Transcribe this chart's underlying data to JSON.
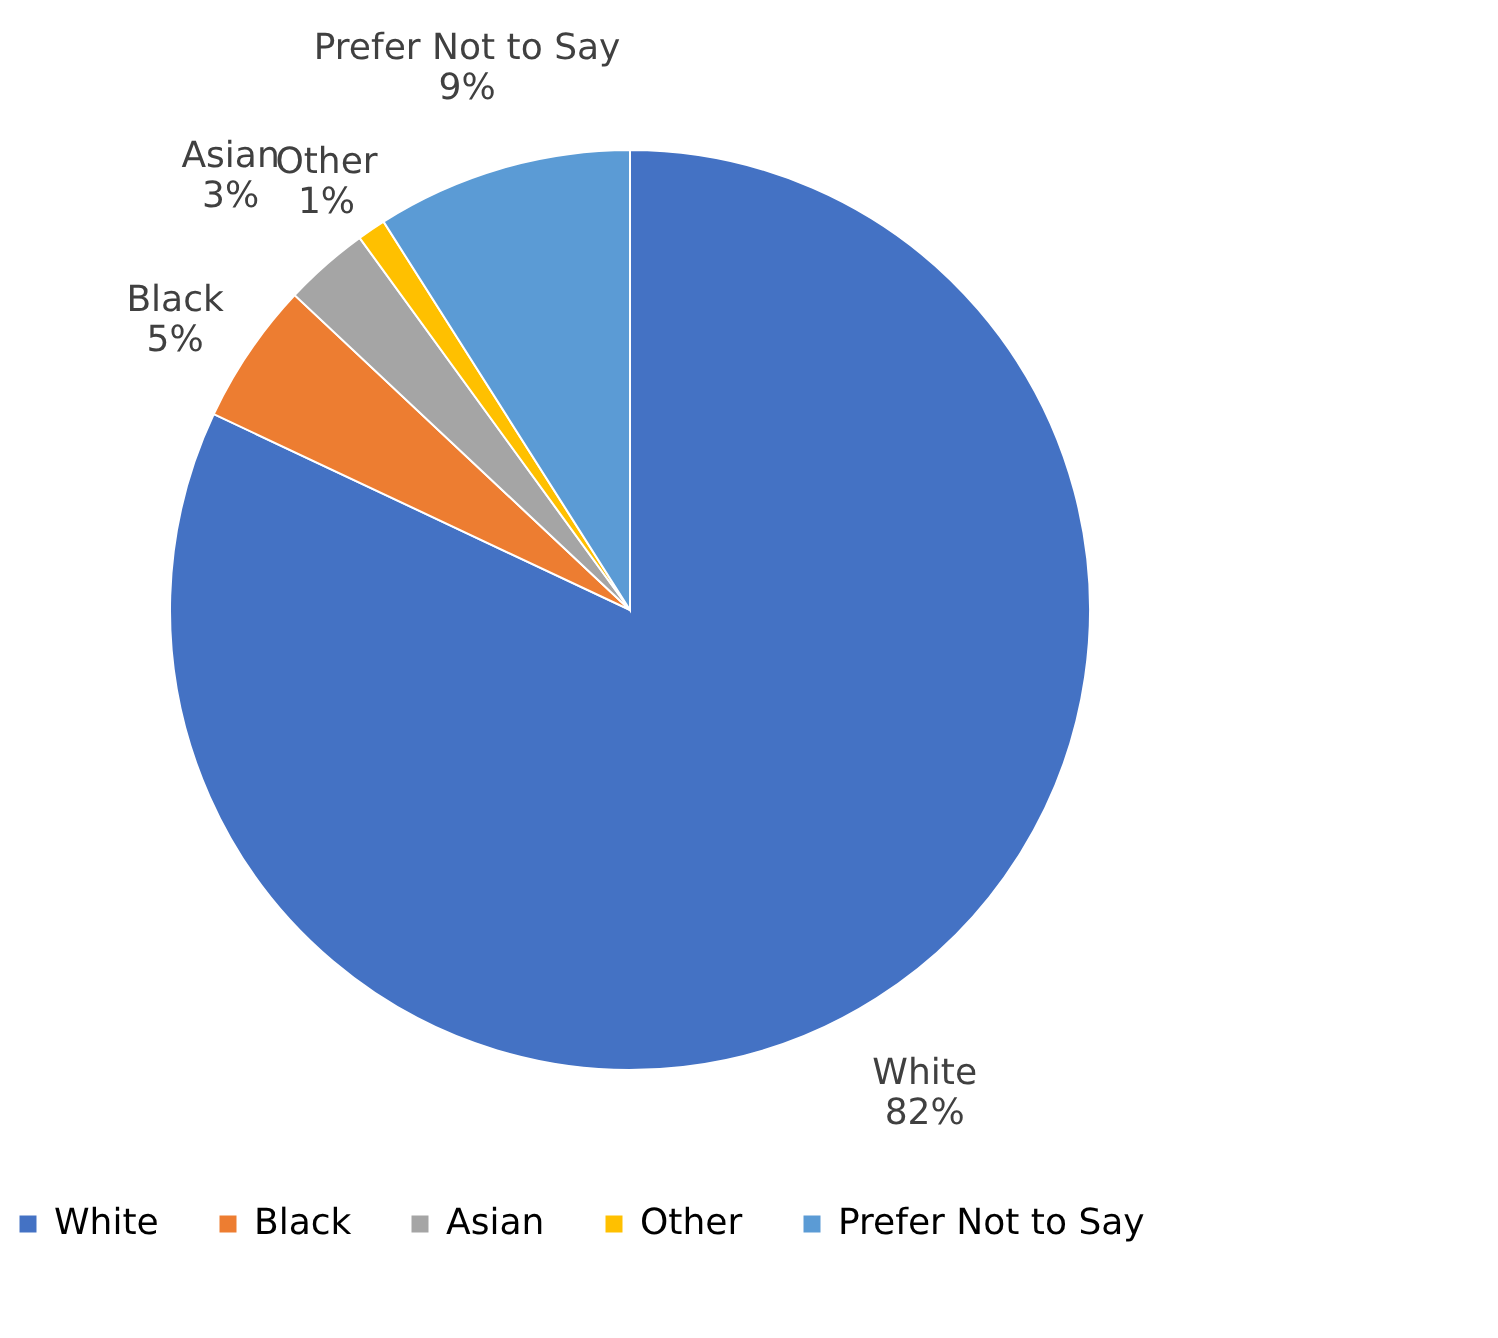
{
  "chart_data": {
    "type": "pie",
    "categories": [
      "White",
      "Black",
      "Asian",
      "Other",
      "Prefer Not to Say"
    ],
    "values": [
      82,
      5,
      3,
      1,
      9
    ],
    "value_labels": [
      "82%",
      "5%",
      "3%",
      "1%",
      "9%"
    ],
    "colors": [
      "#4472c4",
      "#ed7d31",
      "#a5a5a5",
      "#ffc000",
      "#5b9bd5"
    ],
    "legend": "bottom"
  }
}
